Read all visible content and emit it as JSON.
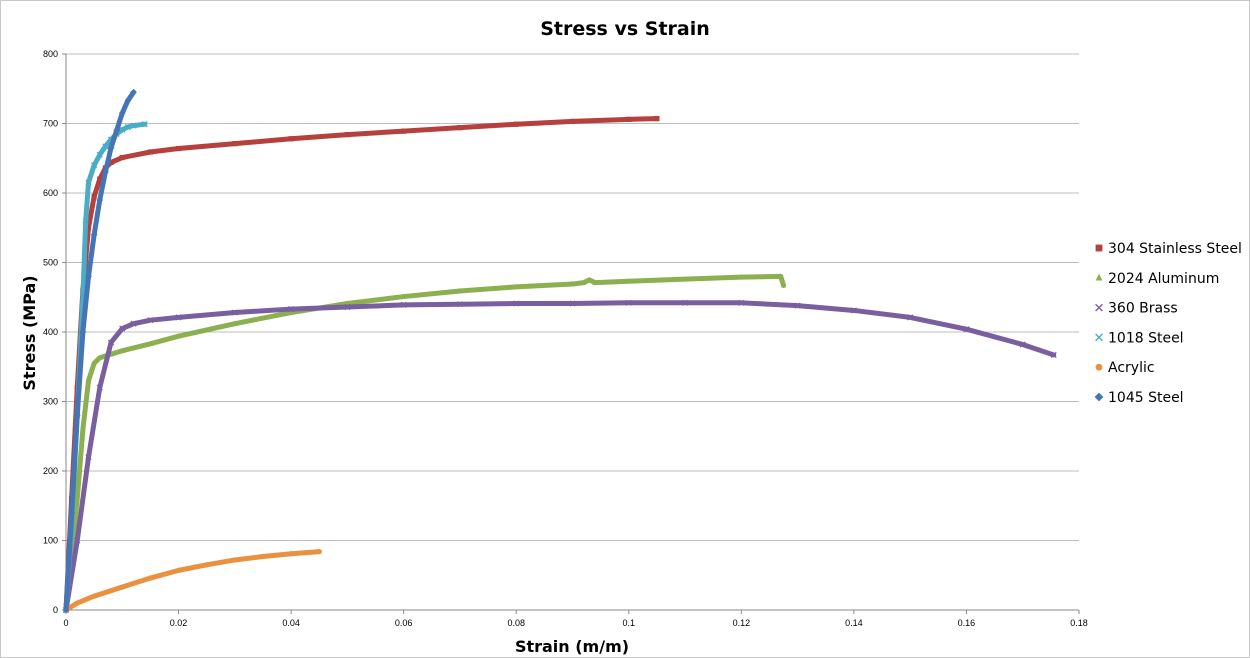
{
  "chart_data": {
    "type": "scatter",
    "title": "Stress vs Strain",
    "xlabel": "Strain (m/m)",
    "ylabel": "Stress (MPa)",
    "xlim": [
      0,
      0.18
    ],
    "ylim": [
      0,
      800
    ],
    "xticks": [
      "0",
      "0.02",
      "0.04",
      "0.06",
      "0.08",
      "0.1",
      "0.12",
      "0.14",
      "0.16",
      "0.18"
    ],
    "xtick_values": [
      0,
      0.02,
      0.04,
      0.06,
      0.08,
      0.1,
      0.12,
      0.14,
      0.16,
      0.18
    ],
    "yticks": [
      "0",
      "100",
      "200",
      "300",
      "400",
      "500",
      "600",
      "700",
      "800"
    ],
    "ytick_values": [
      0,
      100,
      200,
      300,
      400,
      500,
      600,
      700,
      800
    ],
    "grid": "horizontal",
    "legend": "right",
    "series": [
      {
        "name": "304 Stainless Steel",
        "color": "#B5403E",
        "marker": "square",
        "points": [
          [
            0,
            0
          ],
          [
            0.001,
            160
          ],
          [
            0.002,
            320
          ],
          [
            0.003,
            460
          ],
          [
            0.004,
            550
          ],
          [
            0.005,
            595
          ],
          [
            0.006,
            620
          ],
          [
            0.007,
            636
          ],
          [
            0.008,
            644
          ],
          [
            0.01,
            651
          ],
          [
            0.015,
            659
          ],
          [
            0.02,
            664
          ],
          [
            0.03,
            671
          ],
          [
            0.04,
            678
          ],
          [
            0.05,
            684
          ],
          [
            0.06,
            689
          ],
          [
            0.07,
            694
          ],
          [
            0.08,
            699
          ],
          [
            0.09,
            703
          ],
          [
            0.1,
            706
          ],
          [
            0.105,
            707
          ]
        ]
      },
      {
        "name": "2024 Aluminum",
        "color": "#8CB04F",
        "marker": "triangle",
        "points": [
          [
            0,
            0
          ],
          [
            0.001,
            75
          ],
          [
            0.002,
            160
          ],
          [
            0.003,
            260
          ],
          [
            0.004,
            330
          ],
          [
            0.005,
            355
          ],
          [
            0.006,
            363
          ],
          [
            0.008,
            368
          ],
          [
            0.01,
            373
          ],
          [
            0.015,
            383
          ],
          [
            0.02,
            394
          ],
          [
            0.03,
            412
          ],
          [
            0.04,
            428
          ],
          [
            0.05,
            441
          ],
          [
            0.06,
            451
          ],
          [
            0.07,
            459
          ],
          [
            0.08,
            465
          ],
          [
            0.09,
            469
          ],
          [
            0.092,
            471
          ],
          [
            0.093,
            475
          ],
          [
            0.094,
            471
          ],
          [
            0.1,
            473
          ],
          [
            0.11,
            476
          ],
          [
            0.12,
            479
          ],
          [
            0.127,
            480
          ],
          [
            0.1275,
            467
          ]
        ]
      },
      {
        "name": "360 Brass",
        "color": "#7A5FA0",
        "marker": "x",
        "points": [
          [
            0,
            0
          ],
          [
            0.002,
            100
          ],
          [
            0.004,
            220
          ],
          [
            0.006,
            320
          ],
          [
            0.008,
            385
          ],
          [
            0.01,
            405
          ],
          [
            0.012,
            412
          ],
          [
            0.015,
            417
          ],
          [
            0.02,
            421
          ],
          [
            0.03,
            428
          ],
          [
            0.04,
            433
          ],
          [
            0.05,
            436
          ],
          [
            0.06,
            439
          ],
          [
            0.07,
            440
          ],
          [
            0.08,
            441
          ],
          [
            0.09,
            441
          ],
          [
            0.1,
            442
          ],
          [
            0.11,
            442
          ],
          [
            0.12,
            442
          ],
          [
            0.13,
            438
          ],
          [
            0.14,
            431
          ],
          [
            0.15,
            421
          ],
          [
            0.16,
            404
          ],
          [
            0.17,
            382
          ],
          [
            0.1755,
            367
          ]
        ]
      },
      {
        "name": "1018 Steel",
        "color": "#4AACC6",
        "marker": "x",
        "points": [
          [
            0,
            0
          ],
          [
            0.001,
            120
          ],
          [
            0.002,
            280
          ],
          [
            0.003,
            450
          ],
          [
            0.0035,
            560
          ],
          [
            0.004,
            615
          ],
          [
            0.005,
            640
          ],
          [
            0.006,
            655
          ],
          [
            0.007,
            667
          ],
          [
            0.008,
            677
          ],
          [
            0.009,
            685
          ],
          [
            0.01,
            691
          ],
          [
            0.011,
            695
          ],
          [
            0.012,
            697
          ],
          [
            0.014,
            699
          ]
        ]
      },
      {
        "name": "Acrylic",
        "color": "#E9913F",
        "marker": "circle",
        "points": [
          [
            0,
            0
          ],
          [
            0.002,
            10
          ],
          [
            0.005,
            20
          ],
          [
            0.01,
            33
          ],
          [
            0.015,
            46
          ],
          [
            0.02,
            57
          ],
          [
            0.025,
            65
          ],
          [
            0.03,
            72
          ],
          [
            0.035,
            77
          ],
          [
            0.04,
            81
          ],
          [
            0.045,
            84
          ]
        ]
      },
      {
        "name": "1045 Steel",
        "color": "#4475B4",
        "marker": "diamond",
        "points": [
          [
            0,
            0
          ],
          [
            0.001,
            140
          ],
          [
            0.002,
            280
          ],
          [
            0.003,
            400
          ],
          [
            0.004,
            480
          ],
          [
            0.005,
            540
          ],
          [
            0.006,
            590
          ],
          [
            0.007,
            630
          ],
          [
            0.008,
            665
          ],
          [
            0.009,
            690
          ],
          [
            0.01,
            715
          ],
          [
            0.011,
            733
          ],
          [
            0.012,
            745
          ]
        ]
      }
    ]
  }
}
